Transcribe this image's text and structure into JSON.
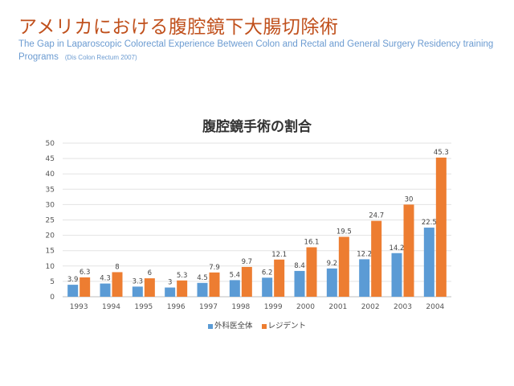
{
  "slide": {
    "title": "アメリカにおける腹腔鏡下大腸切除術",
    "subtitle": "The Gap in Laparoscopic Colorectal Experience Between Colon and Rectal and General Surgery Residency training Programs",
    "citation": "(Dis Colon Rectum 2007)"
  },
  "chart_data": {
    "type": "bar",
    "title": "腹腔鏡手術の割合",
    "xlabel": "",
    "ylabel": "",
    "categories": [
      "1993",
      "1994",
      "1995",
      "1996",
      "1997",
      "1998",
      "1999",
      "2000",
      "2001",
      "2002",
      "2003",
      "2004"
    ],
    "series": [
      {
        "name": "外科医全体",
        "color": "#5b9bd5",
        "values": [
          3.9,
          4.3,
          3.3,
          3,
          4.5,
          5.4,
          6.2,
          8.4,
          9.2,
          12.2,
          14.2,
          22.5
        ]
      },
      {
        "name": "レジデント",
        "color": "#ed7d31",
        "values": [
          6.3,
          8,
          6,
          5.3,
          7.9,
          9.7,
          12.1,
          16.1,
          19.5,
          24.7,
          30,
          45.3
        ]
      }
    ],
    "ylim": [
      0,
      50
    ],
    "yticks": [
      0,
      5,
      10,
      15,
      20,
      25,
      30,
      35,
      40,
      45,
      50
    ],
    "grid": true,
    "legend_position": "bottom"
  }
}
